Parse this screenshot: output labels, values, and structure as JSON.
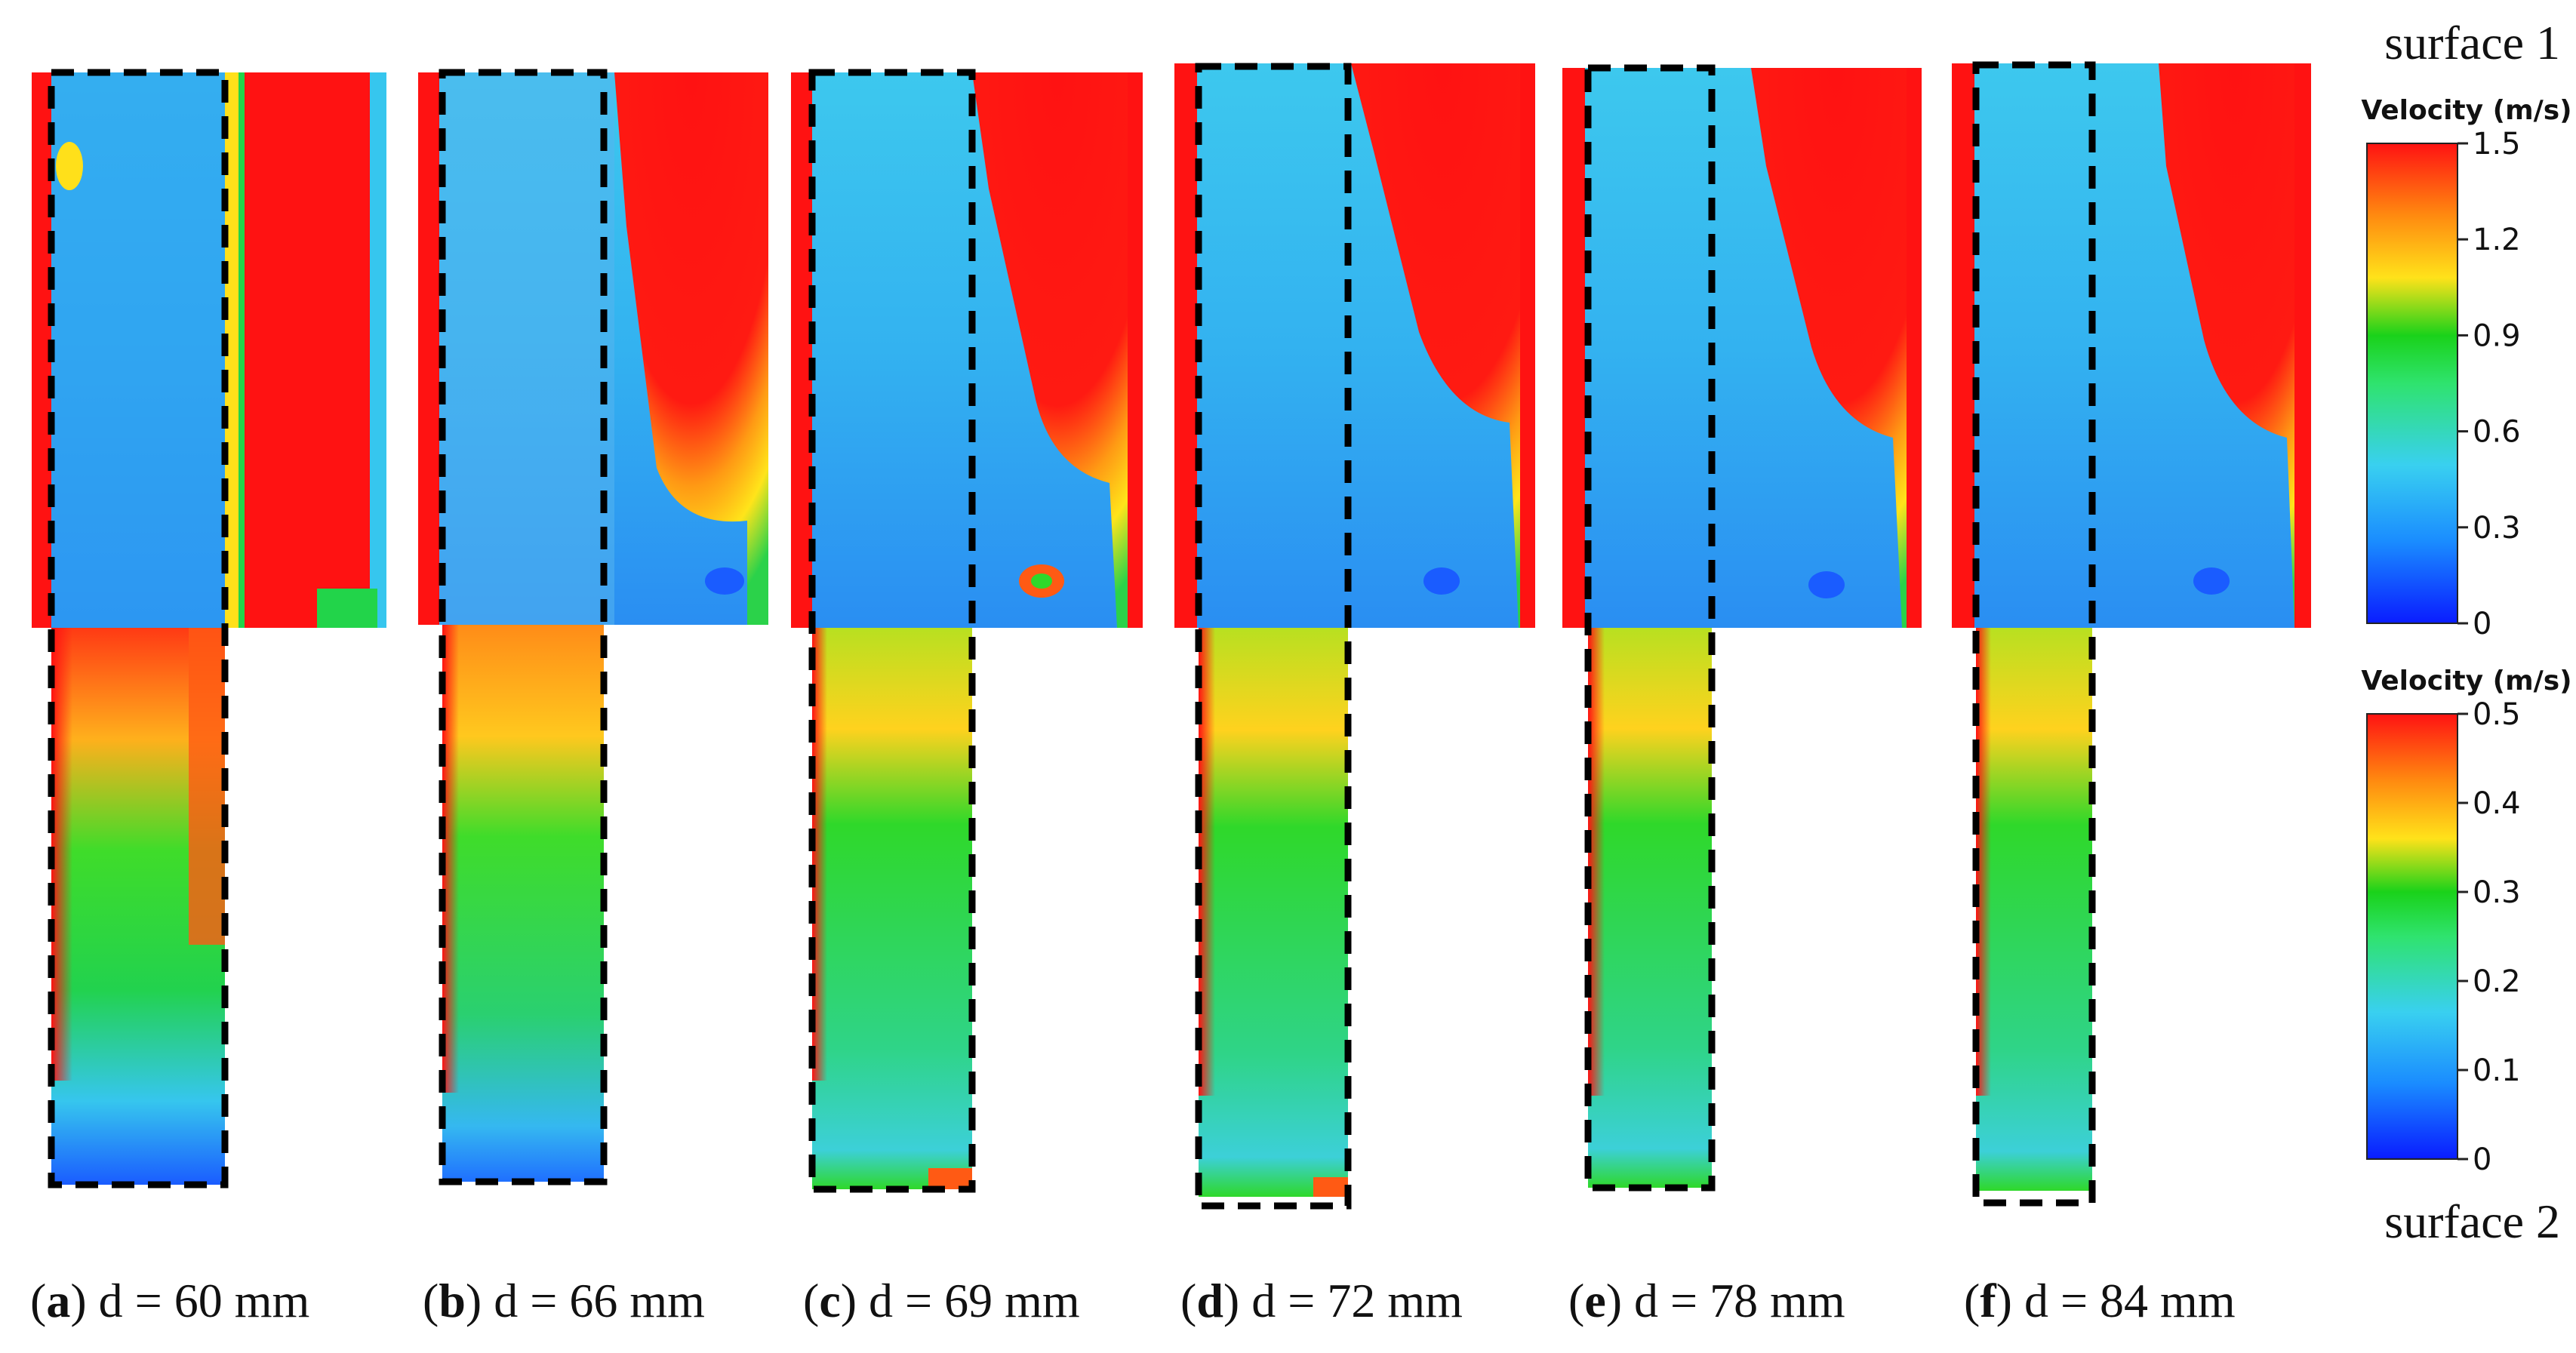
{
  "figure": {
    "surface_top_label": "surface 1",
    "surface_bottom_label": "surface 2",
    "panels": [
      {
        "letter": "a",
        "caption_rest": ") d = 60 mm"
      },
      {
        "letter": "b",
        "caption_rest": ") d = 66 mm"
      },
      {
        "letter": "c",
        "caption_rest": ") d = 69 mm"
      },
      {
        "letter": "d",
        "caption_rest": ") d = 72 mm"
      },
      {
        "letter": "e",
        "caption_rest": ") d = 78 mm"
      },
      {
        "letter": "f",
        "caption_rest": ") d = 84 mm"
      }
    ],
    "colorbars": [
      {
        "title": "Velocity (m/s)",
        "ticks": [
          "1.5",
          "1.2",
          "0.9",
          "0.6",
          "0.3",
          "0"
        ],
        "range": [
          0,
          1.5
        ]
      },
      {
        "title": "Velocity (m/s)",
        "ticks": [
          "0.5",
          "0.4",
          "0.3",
          "0.2",
          "0.1",
          "0"
        ],
        "range": [
          0,
          0.5
        ]
      }
    ],
    "colormap": [
      "#0a1cff",
      "#1a8cff",
      "#39d0f0",
      "#2fe36e",
      "#1ad21a",
      "#ffe21a",
      "#ff8a10",
      "#ff1212"
    ]
  }
}
